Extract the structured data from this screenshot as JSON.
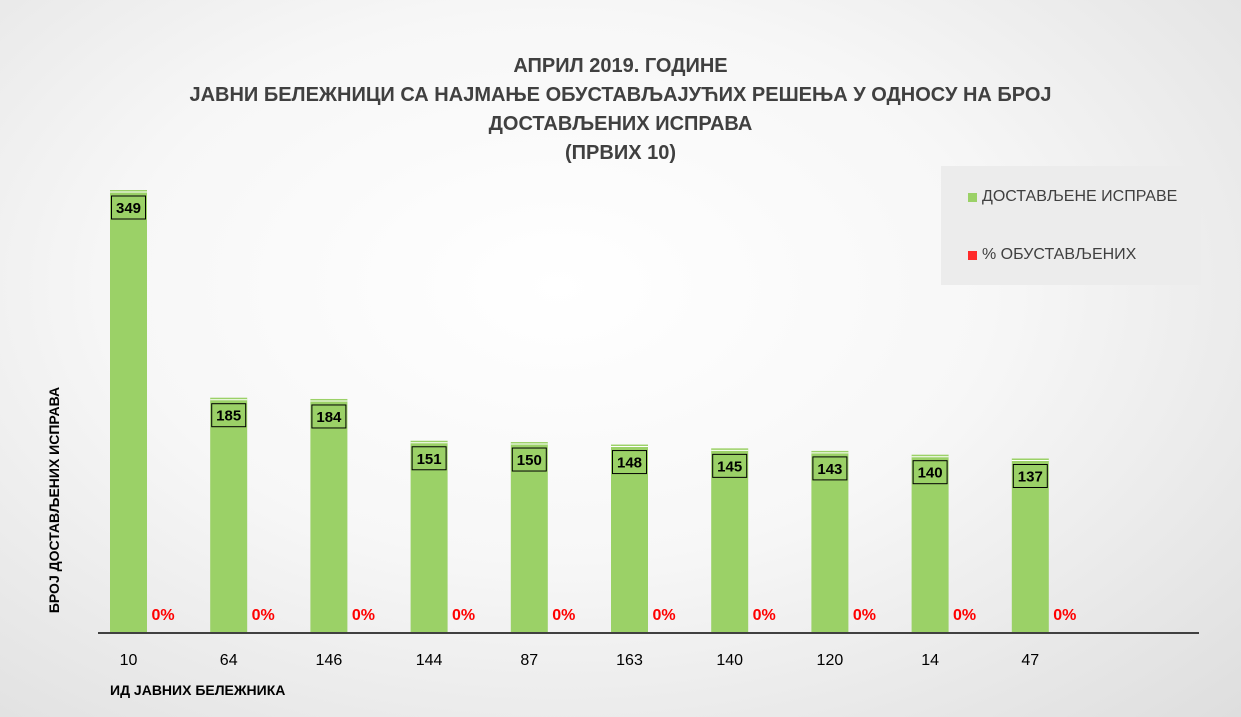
{
  "chart_data": {
    "type": "bar",
    "title_lines": [
      "АПРИЛ 2019. ГОДИНЕ",
      "ЈАВНИ БЕЛЕЖНИЦИ СА НАЈМАЊЕ ОБУСТАВЉАЈУЋИХ РЕШЕЊА У ОДНОСУ НА БРОЈ",
      "ДОСТАВЉЕНИХ ИСПРАВА",
      "(ПРВИХ 10)"
    ],
    "xlabel": "ИД ЈАВНИХ БЕЛЕЖНИКА",
    "ylabel": "БРОЈ ДОСТАВЉЕНИХ ИСПРАВА",
    "categories": [
      "10",
      "64",
      "146",
      "144",
      "87",
      "163",
      "140",
      "120",
      "14",
      "47"
    ],
    "series": [
      {
        "name": "ДОСТАВЉЕНЕ ИСПРАВЕ",
        "color": "#9bd167",
        "values": [
          349,
          185,
          184,
          151,
          150,
          148,
          145,
          143,
          140,
          137
        ],
        "labels": [
          "349",
          "185",
          "184",
          "151",
          "150",
          "148",
          "145",
          "143",
          "140",
          "137"
        ]
      },
      {
        "name": "% ОБУСТАВЉЕНИХ",
        "color": "#ff2a2a",
        "values": [
          0,
          0,
          0,
          0,
          0,
          0,
          0,
          0,
          0,
          0
        ],
        "labels": [
          "0%",
          "0%",
          "0%",
          "0%",
          "0%",
          "0%",
          "0%",
          "0%",
          "0%",
          "0%"
        ]
      }
    ],
    "legend_position": "top-right",
    "grid": false
  }
}
